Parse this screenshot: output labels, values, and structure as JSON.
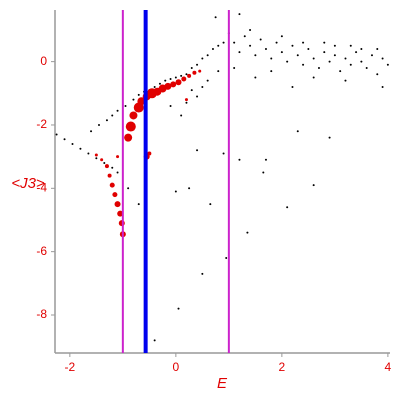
{
  "chart_data": {
    "type": "scatter",
    "x_label": "E",
    "y_label": "<J3>",
    "xlim": [
      -2.28,
      4.04
    ],
    "ylim": [
      -9.2,
      1.63
    ],
    "xticks": [
      -2,
      0,
      2,
      4
    ],
    "yticks": [
      0,
      -2,
      -4,
      -6,
      -8
    ],
    "series": [
      {
        "color": "#000000",
        "x": [
          -2.25,
          -2.1,
          -1.95,
          -1.8,
          -1.65,
          -1.5,
          -1.35,
          -1.2,
          -1.1,
          -1.6,
          -1.45,
          -1.3,
          -1.2,
          -1.1,
          -0.95,
          -0.8,
          -0.7,
          -0.6,
          -0.5,
          -0.4,
          -0.3,
          -0.2,
          -0.1,
          0.0,
          0.1,
          0.2,
          0.3,
          0.4,
          0.5,
          0.6,
          0.7,
          0.8,
          0.9,
          0.3,
          0.5,
          0.2,
          0.4,
          0.6,
          0.8,
          0.1,
          -0.1,
          1.0,
          1.1,
          1.2,
          1.3,
          1.4,
          1.5,
          1.6,
          1.7,
          1.8,
          1.9,
          2.0,
          2.1,
          2.2,
          2.3,
          2.4,
          2.5,
          2.6,
          2.7,
          2.8,
          2.9,
          3.0,
          3.1,
          3.2,
          3.3,
          3.4,
          3.5,
          3.6,
          3.7,
          3.8,
          3.9,
          4.0,
          1.2,
          0.75,
          1.5,
          2.2,
          2.6,
          3.2,
          3.8,
          1.1,
          1.8,
          2.4,
          3.0,
          3.5,
          1.4,
          2.0,
          2.8,
          3.3,
          3.9,
          2.3,
          1.7,
          0.0,
          0.25,
          0.4,
          0.65,
          0.9,
          0.5,
          1.2,
          1.35,
          1.65,
          2.1,
          2.6,
          2.9,
          0.05,
          0.95,
          -0.4,
          -0.7,
          -0.9
        ],
        "values": [
          -2.3,
          -2.45,
          -2.6,
          -2.75,
          -2.9,
          -3.05,
          -3.2,
          -3.35,
          -3.5,
          -2.2,
          -2.0,
          -1.85,
          -1.7,
          -1.55,
          -1.4,
          -1.2,
          -1.05,
          -0.95,
          -0.9,
          -0.8,
          -0.7,
          -0.6,
          -0.55,
          -0.5,
          -0.45,
          -0.4,
          -0.2,
          -0.1,
          0.1,
          0.2,
          0.4,
          0.5,
          0.6,
          -0.9,
          -0.8,
          -1.3,
          -1.1,
          -0.6,
          -0.3,
          -1.7,
          -1.4,
          0.9,
          0.6,
          0.3,
          0.8,
          0.5,
          0.2,
          0.7,
          0.4,
          0.1,
          0.6,
          0.3,
          0.0,
          0.5,
          0.2,
          -0.1,
          0.4,
          0.1,
          -0.2,
          0.3,
          0.0,
          0.2,
          -0.3,
          0.1,
          -0.1,
          0.3,
          0.0,
          -0.2,
          0.2,
          -0.4,
          0.1,
          -0.1,
          1.5,
          1.4,
          -0.5,
          -0.8,
          -0.5,
          -0.6,
          0.4,
          -0.2,
          -0.3,
          0.6,
          0.5,
          0.4,
          1.0,
          0.8,
          0.6,
          0.5,
          -0.8,
          -2.2,
          -3.1,
          -4.1,
          -4.0,
          -2.8,
          -4.5,
          -2.9,
          -6.7,
          -3.1,
          -5.4,
          -3.5,
          -4.6,
          -3.9,
          -2.4,
          -7.8,
          -6.2,
          -8.8,
          -4.5,
          -4.0
        ]
      },
      {
        "color": "#e00000",
        "x": [
          -1.5,
          -1.4,
          -1.3,
          -1.25,
          -1.2,
          -1.15,
          -1.1,
          -1.05,
          -1.02,
          -1.0,
          -0.9,
          -0.85,
          -0.8,
          -0.7,
          -0.65,
          -0.55,
          -0.45,
          -0.35,
          -0.25,
          -0.15,
          -0.05,
          0.05,
          0.15,
          0.25,
          0.35,
          0.45,
          -0.55,
          -0.5,
          0.2,
          -1.1
        ],
        "values": [
          -2.95,
          -3.1,
          -3.3,
          -3.6,
          -3.9,
          -4.2,
          -4.5,
          -4.8,
          -5.1,
          -5.45,
          -2.4,
          -2.05,
          -1.7,
          -1.45,
          -1.25,
          -1.1,
          -1.0,
          -0.95,
          -0.85,
          -0.78,
          -0.72,
          -0.65,
          -0.55,
          -0.45,
          -0.35,
          -0.3,
          -3.0,
          -2.9,
          -1.2,
          -3.0
        ],
        "sizes": [
          1.5,
          1.5,
          2,
          2,
          2.5,
          2.5,
          3,
          3,
          3,
          3,
          4,
          5,
          4,
          5,
          4,
          4,
          5,
          4,
          4,
          3.5,
          3,
          3,
          2.5,
          2,
          2,
          1.5,
          3,
          2,
          1.5,
          1.5
        ]
      }
    ],
    "vlines": [
      {
        "x": -1.0,
        "color": "#cc22cc",
        "width": 2
      },
      {
        "x": -0.57,
        "color": "#0000ee",
        "width": 4
      },
      {
        "x": 1.0,
        "color": "#cc22cc",
        "width": 2
      }
    ]
  }
}
